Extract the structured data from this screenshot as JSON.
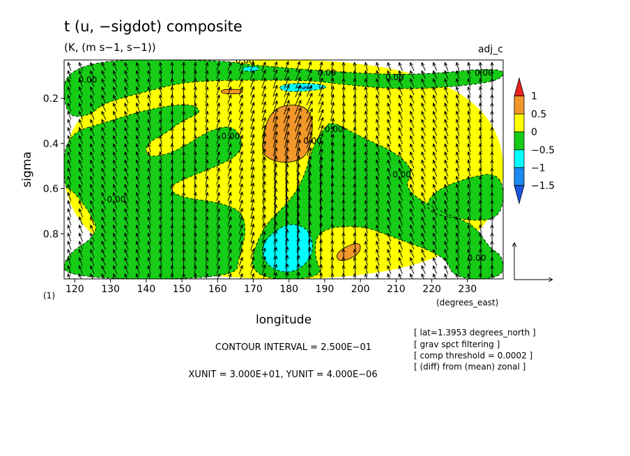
{
  "chart_data": {
    "type": "heatmap",
    "title": "t (u, −sigdot) composite",
    "subtitle": "(K, (m s−1, s−1))",
    "tag": "adj_c",
    "xlabel": "longitude",
    "ylabel": "sigma",
    "x_units": "(degrees_east)",
    "y_units": "(1)",
    "xlim": [
      117,
      240
    ],
    "ylim": [
      1.0,
      0.03
    ],
    "x_ticks": [
      120,
      130,
      140,
      150,
      160,
      170,
      180,
      190,
      200,
      210,
      220,
      230
    ],
    "y_ticks": [
      0.2,
      0.4,
      0.6,
      0.8
    ],
    "colorbar": {
      "labels": [
        "1",
        "0.5",
        "0",
        "−0.5",
        "−1",
        "−1.5"
      ],
      "colors": [
        "#e8221e",
        "#f2972a",
        "#ffff00",
        "#16cc16",
        "#00ffff",
        "#1a8cf0",
        "#1a55e0"
      ]
    },
    "contour_labels": [
      "0.00",
      "0.00",
      "0.00",
      "0.00",
      "0.00",
      "0.00",
      "0.00",
      "0.00",
      "0.00",
      "0.00",
      "0.00"
    ],
    "fill_regions": [
      {
        "level": "pos_0_0.5",
        "color": "#ffff00",
        "points": [
          [
            117,
            0.03
          ],
          [
            240,
            0.03
          ],
          [
            240,
            1.0
          ],
          [
            117,
            1.0
          ]
        ]
      },
      {
        "level": "neg_0_0.5",
        "color": "#16cc16",
        "points": [
          [
            117,
            0.03
          ],
          [
            160,
            0.03
          ],
          [
            168,
            0.05
          ],
          [
            190,
            0.08
          ],
          [
            215,
            0.1
          ],
          [
            240,
            0.06
          ],
          [
            240,
            0.12
          ],
          [
            226,
            0.15
          ],
          [
            210,
            0.16
          ],
          [
            196,
            0.14
          ],
          [
            186,
            0.12
          ],
          [
            172,
            0.12
          ],
          [
            160,
            0.12
          ],
          [
            150,
            0.13
          ],
          [
            140,
            0.17
          ],
          [
            128,
            0.22
          ],
          [
            124,
            0.28
          ],
          [
            117,
            0.28
          ]
        ]
      },
      {
        "level": "neg_0_0.5",
        "color": "#16cc16",
        "points": [
          [
            117,
            0.36
          ],
          [
            130,
            0.3
          ],
          [
            140,
            0.25
          ],
          [
            152,
            0.22
          ],
          [
            156,
            0.26
          ],
          [
            150,
            0.3
          ],
          [
            145,
            0.36
          ],
          [
            140,
            0.4
          ],
          [
            140,
            0.46
          ],
          [
            146,
            0.45
          ],
          [
            152,
            0.4
          ],
          [
            158,
            0.34
          ],
          [
            164,
            0.32
          ],
          [
            167,
            0.38
          ],
          [
            166,
            0.45
          ],
          [
            160,
            0.5
          ],
          [
            150,
            0.56
          ],
          [
            146,
            0.6
          ],
          [
            150,
            0.64
          ],
          [
            160,
            0.66
          ],
          [
            167,
            0.7
          ],
          [
            168,
            0.8
          ],
          [
            166,
            0.9
          ],
          [
            165,
            1.0
          ],
          [
            117,
            1.0
          ],
          [
            117,
            0.9
          ],
          [
            127,
            0.8
          ],
          [
            124,
            0.7
          ],
          [
            119,
            0.6
          ],
          [
            117,
            0.6
          ]
        ]
      },
      {
        "level": "neg_0_0.5",
        "color": "#16cc16",
        "points": [
          [
            168,
            1.0
          ],
          [
            172,
            0.78
          ],
          [
            180,
            0.66
          ],
          [
            184,
            0.56
          ],
          [
            187,
            0.4
          ],
          [
            190,
            0.33
          ],
          [
            192,
            0.3
          ],
          [
            200,
            0.37
          ],
          [
            210,
            0.44
          ],
          [
            215,
            0.52
          ],
          [
            212,
            0.6
          ],
          [
            222,
            0.7
          ],
          [
            232,
            0.76
          ],
          [
            236,
            0.86
          ],
          [
            240,
            0.9
          ],
          [
            240,
            1.0
          ],
          [
            226,
            1.0
          ],
          [
            224,
            0.9
          ],
          [
            210,
            0.82
          ],
          [
            200,
            0.76
          ],
          [
            188,
            0.78
          ],
          [
            187,
            0.9
          ],
          [
            190,
            1.0
          ]
        ]
      },
      {
        "level": "neg_0_0.5",
        "color": "#16cc16",
        "points": [
          [
            240,
            0.52
          ],
          [
            228,
            0.56
          ],
          [
            220,
            0.62
          ],
          [
            218,
            0.7
          ],
          [
            228,
            0.74
          ],
          [
            240,
            0.74
          ]
        ]
      },
      {
        "level": "pos_0.5_1",
        "color": "#f2972a",
        "points": [
          [
            175,
            0.23
          ],
          [
            187,
            0.23
          ],
          [
            186,
            0.45
          ],
          [
            180,
            0.49
          ],
          [
            174,
            0.47
          ],
          [
            172,
            0.42
          ]
        ]
      },
      {
        "level": "pos_0.5_1",
        "color": "#f2972a",
        "points": [
          [
            193,
            0.88
          ],
          [
            200,
            0.83
          ],
          [
            200,
            0.89
          ],
          [
            194,
            0.93
          ]
        ]
      },
      {
        "level": "pos_0.5_1",
        "color": "#f2972a",
        "points": [
          [
            161,
            0.16
          ],
          [
            167,
            0.16
          ],
          [
            167,
            0.18
          ],
          [
            161,
            0.18
          ]
        ]
      },
      {
        "level": "neg_0.5_1",
        "color": "#00ffff",
        "points": [
          [
            175,
            0.8
          ],
          [
            180,
            0.75
          ],
          [
            186,
            0.78
          ],
          [
            187,
            0.9
          ],
          [
            181,
            0.98
          ],
          [
            174,
            0.95
          ],
          [
            172,
            0.86
          ]
        ]
      },
      {
        "level": "neg_0.5_1",
        "color": "#00ffff",
        "points": [
          [
            177,
            0.14
          ],
          [
            186,
            0.13
          ],
          [
            192,
            0.15
          ],
          [
            185,
            0.17
          ],
          [
            178,
            0.17
          ]
        ]
      },
      {
        "level": "neg_0.5_1",
        "color": "#00ffff",
        "points": [
          [
            167,
            0.06
          ],
          [
            172,
            0.06
          ],
          [
            171,
            0.08
          ],
          [
            167,
            0.08
          ]
        ]
      },
      {
        "level": "neg_1_1.5",
        "color": "#1a8cf0",
        "points": [
          [
            181,
            0.15
          ],
          [
            187,
            0.15
          ],
          [
            185,
            0.16
          ]
        ]
      }
    ],
    "vector_reference": {
      "xunit": "3.000E+01",
      "yunit": "4.000E−06"
    }
  },
  "annotations": {
    "contour_interval": "CONTOUR INTERVAL = 2.500E−01",
    "units_line": "XUNIT = 3.000E+01, YUNIT = 4.000E−06",
    "notes": [
      "[ lat=1.3953 degrees_north ]",
      "[ grav spct filtering ]",
      "[ comp threshold = 0.0002 ]",
      "[ (diff) from (mean) zonal ]"
    ]
  }
}
